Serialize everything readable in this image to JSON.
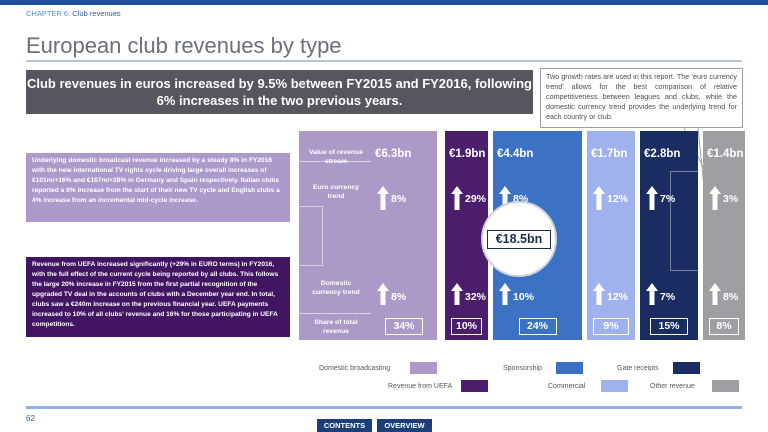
{
  "header": {
    "chapter": "CHAPTER 6:",
    "chapter_section": "Club revenues",
    "title": "European club revenues by type"
  },
  "headline": "Club revenues in euros increased by 9.5% between FY2015 and FY2016, following 6% increases in the two previous years.",
  "callout": "Two growth rates are used in this report. The ‘euro currency trend’ allows for the best comparison of relative competitiveness between leagues and clubs, while the domestic currency trend provides the underlying trend for each country or club.",
  "text_boxes": {
    "broadcast": "Underlying domestic broadcast revenue increased by a steady 8% in FY2016 with the new international TV rights cycle driving large overall increases of €101m/+16% and €167m/+28% in Germany and Spain respectively. Italian clubs reported a 6% increase from the start of their new TV cycle and English clubs a 4% increase from an incremental mid-cycle increase.",
    "uefa": "Revenue from UEFA increased significantly (+29% in EURO terms) in FY2016, with the full effect of the current cycle being reported by all clubs. This follows the large 20% increase in FY2015 from the first partial recognition of the upgraded TV deal in the accounts of clubs with a December year end. In total, clubs saw a €240m increase on the previous financial year. UEFA payments increased to 10% of all clubs’ revenue and 16% for those participating in UEFA competitions."
  },
  "row_labels": {
    "value": "Value of revenue stream",
    "euro": "Euro currency trend",
    "domestic": "Domestic currency trend",
    "share": "Share of total revenue"
  },
  "chart_data": {
    "type": "table",
    "total": "€18.5bn",
    "categories": [
      "Domestic broadcasting",
      "Revenue from UEFA",
      "Sponsorship",
      "Commercial",
      "Gate receipts",
      "Other revenue"
    ],
    "value_labels": [
      "€6.3bn",
      "€1.9bn",
      "€4.4bn",
      "€1.7bn",
      "€2.8bn",
      "€1.4bn"
    ],
    "values_bn": [
      6.3,
      1.9,
      4.4,
      1.7,
      2.8,
      1.4
    ],
    "euro_trend_labels": [
      "8%",
      "29%",
      "8%",
      "12%",
      "7%",
      "3%"
    ],
    "domestic_trend_labels": [
      "8%",
      "32%",
      "10%",
      "12%",
      "7%",
      "8%"
    ],
    "share_labels": [
      "34%",
      "10%",
      "24%",
      "9%",
      "15%",
      "8%"
    ],
    "share_pct": [
      34,
      10,
      24,
      9,
      15,
      8
    ],
    "colors": [
      "#ab9ac7",
      "#4c1d6b",
      "#3b72c4",
      "#9fb2ee",
      "#192d63",
      "#9e9fa3"
    ]
  },
  "legend": {
    "domestic": "Domestic broadcasting",
    "uefa": "Revenue from UEFA",
    "sponsorship": "Sponsorship",
    "commercial": "Commercial",
    "gate": "Gate receipts",
    "other": "Other revenue"
  },
  "footer": {
    "page": "62",
    "contents": "CONTENTS",
    "overview": "OVERVIEW"
  }
}
